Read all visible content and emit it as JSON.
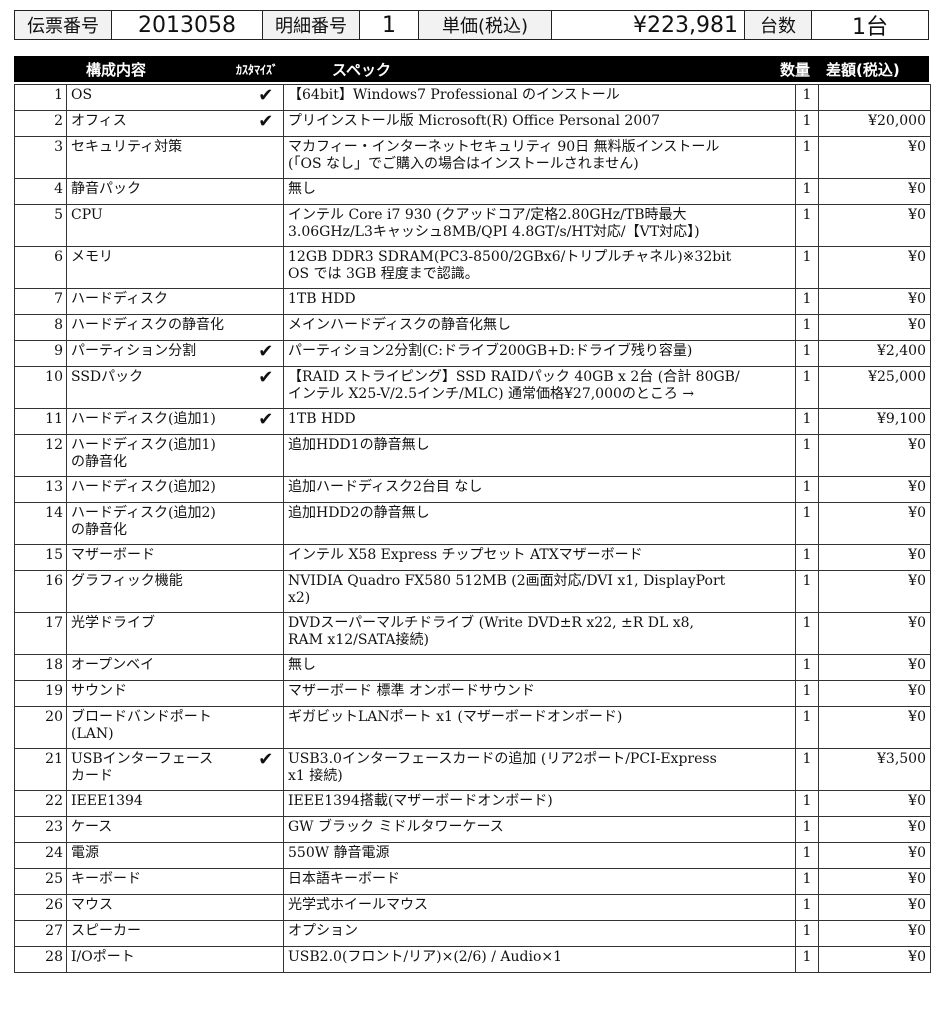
{
  "header": {
    "slip_label": "伝票番号",
    "slip_no": "2013058",
    "detail_label": "明細番号",
    "detail_no": "1",
    "price_label": "単価(税込)",
    "price": "¥223,981",
    "units_label": "台数",
    "units": "1台"
  },
  "columns": {
    "item": "構成内容",
    "custom": "ｶｽﾀﾏｲｽﾞ",
    "spec": "スペック",
    "qty": "数量",
    "diff": "差額(税込)"
  },
  "check_icon": "✔",
  "rows": [
    {
      "no": "1",
      "item": "OS",
      "check": "✔",
      "spec": "【64bit】Windows7 Professional のインストール",
      "qty": "1",
      "diff": ""
    },
    {
      "no": "2",
      "item": "オフィス",
      "check": "✔",
      "spec": "プリインストール版 Microsoft(R) Office Personal 2007",
      "qty": "1",
      "diff": "¥20,000"
    },
    {
      "no": "3",
      "item": "セキュリティ対策",
      "check": "",
      "spec": "マカフィー・インターネットセキュリティ 90日 無料版インストール\n(「OS なし」でご購入の場合はインストールされません)",
      "qty": "1",
      "diff": "¥0"
    },
    {
      "no": "4",
      "item": "静音パック",
      "check": "",
      "spec": "無し",
      "qty": "1",
      "diff": "¥0"
    },
    {
      "no": "5",
      "item": "CPU",
      "check": "",
      "spec": "インテル Core i7 930 (クアッドコア/定格2.80GHz/TB時最大\n3.06GHz/L3キャッシュ8MB/QPI 4.8GT/s/HT対応/【VT対応】)",
      "qty": "1",
      "diff": "¥0"
    },
    {
      "no": "6",
      "item": "メモリ",
      "check": "",
      "spec": "12GB DDR3 SDRAM(PC3-8500/2GBx6/トリプルチャネル)※32bit\nOS では 3GB 程度まで認識。",
      "qty": "1",
      "diff": "¥0"
    },
    {
      "no": "7",
      "item": "ハードディスク",
      "check": "",
      "spec": "1TB HDD",
      "qty": "1",
      "diff": "¥0"
    },
    {
      "no": "8",
      "item": "ハードディスクの静音化",
      "check": "",
      "spec": "メインハードディスクの静音化無し",
      "qty": "1",
      "diff": "¥0"
    },
    {
      "no": "9",
      "item": "パーティション分割",
      "check": "✔",
      "spec": "パーティション2分割(C:ドライブ200GB+D:ドライブ残り容量)",
      "qty": "1",
      "diff": "¥2,400"
    },
    {
      "no": "10",
      "item": "SSDパック",
      "check": "✔",
      "spec": "【RAID ストライピング】SSD RAIDパック 40GB x 2台 (合計 80GB/\nインテル X25-V/2.5インチ/MLC) 通常価格¥27,000のところ →",
      "qty": "1",
      "diff": "¥25,000"
    },
    {
      "no": "11",
      "item": "ハードディスク(追加1)",
      "check": "✔",
      "spec": "1TB HDD",
      "qty": "1",
      "diff": "¥9,100"
    },
    {
      "no": "12",
      "item": "ハードディスク(追加1)\nの静音化",
      "check": "",
      "spec": "追加HDD1の静音無し",
      "qty": "1",
      "diff": "¥0"
    },
    {
      "no": "13",
      "item": "ハードディスク(追加2)",
      "check": "",
      "spec": "追加ハードディスク2台目 なし",
      "qty": "1",
      "diff": "¥0"
    },
    {
      "no": "14",
      "item": "ハードディスク(追加2)\nの静音化",
      "check": "",
      "spec": "追加HDD2の静音無し",
      "qty": "1",
      "diff": "¥0"
    },
    {
      "no": "15",
      "item": "マザーボード",
      "check": "",
      "spec": "インテル X58 Express チップセット ATXマザーボード",
      "qty": "1",
      "diff": "¥0"
    },
    {
      "no": "16",
      "item": "グラフィック機能",
      "check": "",
      "spec": "NVIDIA Quadro FX580 512MB (2画面対応/DVI x1, DisplayPort\nx2)",
      "qty": "1",
      "diff": "¥0"
    },
    {
      "no": "17",
      "item": "光学ドライブ",
      "check": "",
      "spec": "DVDスーパーマルチドライブ (Write DVD±R x22, ±R DL x8,\nRAM x12/SATA接続)",
      "qty": "1",
      "diff": "¥0"
    },
    {
      "no": "18",
      "item": "オープンベイ",
      "check": "",
      "spec": "無し",
      "qty": "1",
      "diff": "¥0"
    },
    {
      "no": "19",
      "item": "サウンド",
      "check": "",
      "spec": "マザーボード 標準 オンボードサウンド",
      "qty": "1",
      "diff": "¥0"
    },
    {
      "no": "20",
      "item": "ブロードバンドポート\n(LAN)",
      "check": "",
      "spec": "ギガビットLANポート x1 (マザーボードオンボード)",
      "qty": "1",
      "diff": "¥0"
    },
    {
      "no": "21",
      "item": "USBインターフェース\nカード",
      "check": "✔",
      "spec": "USB3.0インターフェースカードの追加 (リア2ポート/PCI-Express\nx1 接続)",
      "qty": "1",
      "diff": "¥3,500"
    },
    {
      "no": "22",
      "item": "IEEE1394",
      "check": "",
      "spec": "IEEE1394搭載(マザーボードオンボード)",
      "qty": "1",
      "diff": "¥0"
    },
    {
      "no": "23",
      "item": "ケース",
      "check": "",
      "spec": "GW ブラック ミドルタワーケース",
      "qty": "1",
      "diff": "¥0"
    },
    {
      "no": "24",
      "item": "電源",
      "check": "",
      "spec": "550W 静音電源",
      "qty": "1",
      "diff": "¥0"
    },
    {
      "no": "25",
      "item": "キーボード",
      "check": "",
      "spec": "日本語キーボード",
      "qty": "1",
      "diff": "¥0"
    },
    {
      "no": "26",
      "item": "マウス",
      "check": "",
      "spec": "光学式ホイールマウス",
      "qty": "1",
      "diff": "¥0"
    },
    {
      "no": "27",
      "item": "スピーカー",
      "check": "",
      "spec": "オプション",
      "qty": "1",
      "diff": "¥0"
    },
    {
      "no": "28",
      "item": "I/Oポート",
      "check": "",
      "spec": "USB2.0(フロント/リア)×(2/6) / Audio×1",
      "qty": "1",
      "diff": "¥0"
    }
  ]
}
